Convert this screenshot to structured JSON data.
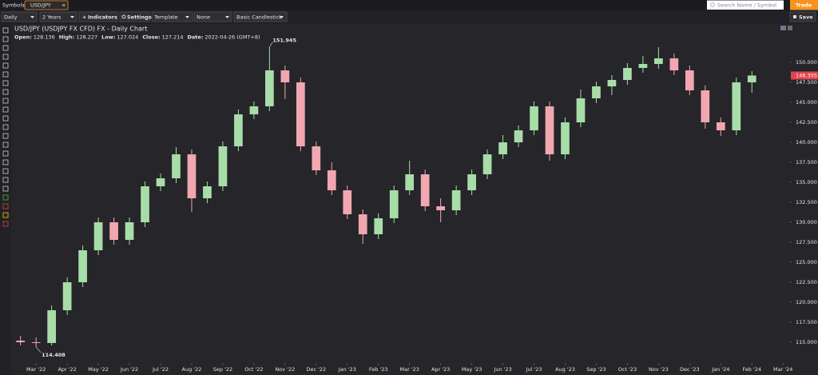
{
  "topbar": {
    "symbols_label": "Symbols:",
    "tab": "USD/JPY",
    "search_placeholder": "Search Name / Symbol",
    "trade_button": "Trade"
  },
  "toolbar": {
    "interval": "Daily",
    "range": "2 Years",
    "indicators": "Indicators",
    "settings": "Settings",
    "template": "Template",
    "overlay": "None",
    "chart_style": "Basic Candlestick",
    "save": "Save"
  },
  "chart_data": {
    "type": "candlestick",
    "title": "USD/JPY (USDJPY FX CFD) FX - Daily Chart",
    "info": [
      {
        "label": "Open:",
        "value": 128.136
      },
      {
        "label": "High:",
        "value": 128.227
      },
      {
        "label": "Low:",
        "value": 127.024
      },
      {
        "label": "Close:",
        "value": 127.214
      },
      {
        "label": "Date:",
        "value": "2022-04-26 (GMT+8)"
      }
    ],
    "x": [
      -0.5,
      0,
      0.5,
      1,
      1.5,
      2,
      2.5,
      3,
      3.5,
      4,
      4.5,
      5,
      5.5,
      6,
      6.5,
      7,
      7.5,
      8,
      8.5,
      9,
      9.5,
      10,
      10.5,
      11,
      11.5,
      12,
      12.5,
      13,
      13.5,
      14,
      14.5,
      15,
      15.5,
      16,
      16.5,
      17,
      17.5,
      18,
      18.5,
      19,
      19.5,
      20,
      20.5,
      21,
      21.5,
      22,
      22.5,
      23
    ],
    "open": [
      115.2,
      115.0,
      114.9,
      119.0,
      122.5,
      126.5,
      130.0,
      127.8,
      130.0,
      134.5,
      135.5,
      138.5,
      133.0,
      134.5,
      139.5,
      143.5,
      144.5,
      149.0,
      147.5,
      139.5,
      136.5,
      134.0,
      131.0,
      128.5,
      130.5,
      134.0,
      136.0,
      132.0,
      131.5,
      134.0,
      136.0,
      138.5,
      140.0,
      141.5,
      144.5,
      138.5,
      142.5,
      145.5,
      147.0,
      147.8,
      149.3,
      149.8,
      150.5,
      149.0,
      146.5,
      142.5,
      141.5,
      147.5
    ],
    "high": [
      115.8,
      115.6,
      119.6,
      123.1,
      127.1,
      130.6,
      130.6,
      130.6,
      135.1,
      136.1,
      139.4,
      139.1,
      135.1,
      140.1,
      144.1,
      145.1,
      151.945,
      149.6,
      148.1,
      140.1,
      137.5,
      134.6,
      131.6,
      131.1,
      134.6,
      137.7,
      136.6,
      133.0,
      134.6,
      136.6,
      139.1,
      140.9,
      142.1,
      145.1,
      145.1,
      143.1,
      146.6,
      147.6,
      148.4,
      149.9,
      150.8,
      151.9,
      151.1,
      149.6,
      147.1,
      143.1,
      148.1,
      148.9
    ],
    "low": [
      114.6,
      114.408,
      114.6,
      118.4,
      121.9,
      125.9,
      127.2,
      127.2,
      129.4,
      133.9,
      134.9,
      131.3,
      132.4,
      133.9,
      138.9,
      142.9,
      143.9,
      145.4,
      138.9,
      135.9,
      133.4,
      130.4,
      127.3,
      127.9,
      129.9,
      133.4,
      131.4,
      130.0,
      130.9,
      133.4,
      135.4,
      137.9,
      139.4,
      140.9,
      137.7,
      137.9,
      141.9,
      144.9,
      145.9,
      147.2,
      148.7,
      149.2,
      148.4,
      145.9,
      141.7,
      140.8,
      140.9,
      146.2
    ],
    "close": [
      115.0,
      114.9,
      119.0,
      122.5,
      126.5,
      130.0,
      127.8,
      130.0,
      134.5,
      135.5,
      138.5,
      133.0,
      134.5,
      139.5,
      143.5,
      144.5,
      149.0,
      147.5,
      139.5,
      136.5,
      134.0,
      131.0,
      128.5,
      130.5,
      134.0,
      136.0,
      132.0,
      131.5,
      134.0,
      136.0,
      138.5,
      140.0,
      141.5,
      144.5,
      138.5,
      142.5,
      145.5,
      147.0,
      147.8,
      149.3,
      149.8,
      150.5,
      149.0,
      146.5,
      142.5,
      141.5,
      147.5,
      148.355
    ],
    "up_color": "#a8dca8",
    "down_color": "#f0a7b0",
    "last_price_color": "#e0454f",
    "xlim": [
      -0.8,
      24.2
    ],
    "xticks": [
      {
        "value": 0,
        "label": "Mar '22"
      },
      {
        "value": 1,
        "label": "Apr '22"
      },
      {
        "value": 2,
        "label": "May '22"
      },
      {
        "value": 3,
        "label": "Jun '22"
      },
      {
        "value": 4,
        "label": "Jul '22"
      },
      {
        "value": 5,
        "label": "Aug '22"
      },
      {
        "value": 6,
        "label": "Sep '22"
      },
      {
        "value": 7,
        "label": "Oct '22"
      },
      {
        "value": 8,
        "label": "Nov '22"
      },
      {
        "value": 9,
        "label": "Dec '22"
      },
      {
        "value": 10,
        "label": "Jan '23"
      },
      {
        "value": 11,
        "label": "Feb '23"
      },
      {
        "value": 12,
        "label": "Mar '23"
      },
      {
        "value": 13,
        "label": "Apr '23"
      },
      {
        "value": 14,
        "label": "May '23"
      },
      {
        "value": 15,
        "label": "Jun '23"
      },
      {
        "value": 16,
        "label": "Jul '23"
      },
      {
        "value": 17,
        "label": "Aug '23"
      },
      {
        "value": 18,
        "label": "Sep '23"
      },
      {
        "value": 19,
        "label": "Oct '23"
      },
      {
        "value": 20,
        "label": "Nov '23"
      },
      {
        "value": 21,
        "label": "Dec '23"
      },
      {
        "value": 22,
        "label": "Jan '24"
      },
      {
        "value": 23,
        "label": "Feb '24"
      },
      {
        "value": 24,
        "label": "Mar '24"
      }
    ],
    "ylim": [
      112.6,
      154.8
    ],
    "yticks": [
      {
        "value": 115,
        "label": "115.000"
      },
      {
        "value": 117.5,
        "label": "117.500"
      },
      {
        "value": 120,
        "label": "120.000"
      },
      {
        "value": 122.5,
        "label": "122.500"
      },
      {
        "value": 125,
        "label": "125.000"
      },
      {
        "value": 127.5,
        "label": "127.500"
      },
      {
        "value": 130,
        "label": "130.000"
      },
      {
        "value": 132.5,
        "label": "132.500"
      },
      {
        "value": 135,
        "label": "135.000"
      },
      {
        "value": 137.5,
        "label": "137.500"
      },
      {
        "value": 140,
        "label": "140.000"
      },
      {
        "value": 142.5,
        "label": "142.500"
      },
      {
        "value": 145,
        "label": "145.000"
      },
      {
        "value": 147.5,
        "label": "147.500"
      },
      {
        "value": 150,
        "label": "150.000"
      }
    ],
    "grid": false
  }
}
